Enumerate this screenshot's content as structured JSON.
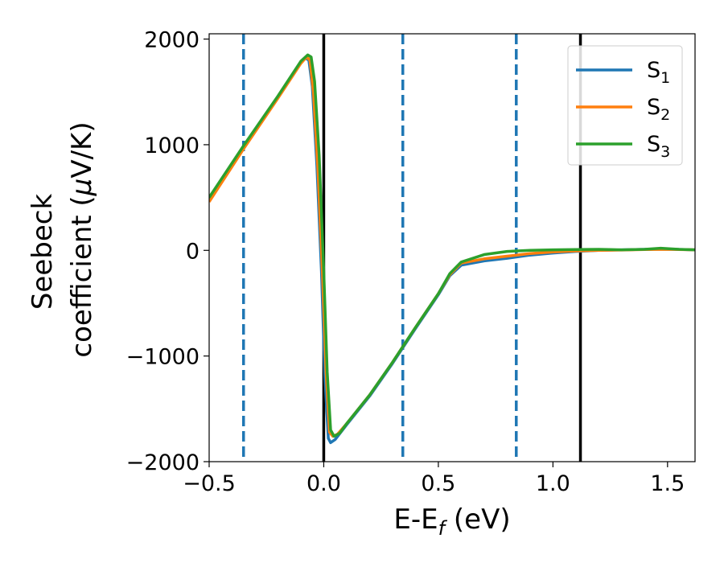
{
  "chart_data": {
    "type": "line",
    "title": "",
    "xlabel": {
      "main": "E-E",
      "sub": "f",
      "tail": " (eV)"
    },
    "ylabel": {
      "line1": "Seebeck",
      "line2": "coefficient  (",
      "mu": "μ",
      "line2_tail": "V/K)"
    },
    "xlim": [
      -0.5,
      1.62
    ],
    "ylim": [
      -2000,
      2050
    ],
    "xticks": [
      -0.5,
      0.0,
      0.5,
      1.0,
      1.5
    ],
    "xtick_labels": [
      "−0.5",
      "0.0",
      "0.5",
      "1.0",
      "1.5"
    ],
    "yticks": [
      -2000,
      -1000,
      0,
      1000,
      2000
    ],
    "ytick_labels": [
      "−2000",
      "−1000",
      "0",
      "1000",
      "2000"
    ],
    "grid": false,
    "legend_position": "top-right",
    "vlines": [
      {
        "x": -0.35,
        "style": "dashed",
        "color": "#1f77b4"
      },
      {
        "x": 0.0,
        "style": "solid",
        "color": "#000000"
      },
      {
        "x": 0.345,
        "style": "dashed",
        "color": "#1f77b4"
      },
      {
        "x": 0.84,
        "style": "dashed",
        "color": "#1f77b4"
      },
      {
        "x": 1.12,
        "style": "solid",
        "color": "#000000"
      }
    ],
    "series": [
      {
        "name": "S",
        "sub": "1",
        "color": "#1f77b4",
        "points": [
          [
            -0.5,
            480
          ],
          [
            -0.35,
            975
          ],
          [
            -0.2,
            1450
          ],
          [
            -0.1,
            1780
          ],
          [
            -0.08,
            1820
          ],
          [
            -0.065,
            1800
          ],
          [
            -0.05,
            1550
          ],
          [
            -0.03,
            800
          ],
          [
            -0.01,
            -200
          ],
          [
            0.005,
            -1200
          ],
          [
            0.02,
            -1780
          ],
          [
            0.03,
            -1820
          ],
          [
            0.05,
            -1790
          ],
          [
            0.1,
            -1650
          ],
          [
            0.2,
            -1380
          ],
          [
            0.3,
            -1070
          ],
          [
            0.4,
            -740
          ],
          [
            0.5,
            -420
          ],
          [
            0.55,
            -240
          ],
          [
            0.6,
            -140
          ],
          [
            0.7,
            -100
          ],
          [
            0.8,
            -75
          ],
          [
            0.9,
            -45
          ],
          [
            1.0,
            -25
          ],
          [
            1.1,
            -10
          ],
          [
            1.2,
            0
          ],
          [
            1.3,
            5
          ],
          [
            1.4,
            10
          ],
          [
            1.5,
            12
          ],
          [
            1.62,
            5
          ]
        ]
      },
      {
        "name": "S",
        "sub": "2",
        "color": "#ff7f0e",
        "points": [
          [
            -0.5,
            460
          ],
          [
            -0.35,
            960
          ],
          [
            -0.2,
            1440
          ],
          [
            -0.1,
            1770
          ],
          [
            -0.075,
            1830
          ],
          [
            -0.06,
            1800
          ],
          [
            -0.045,
            1500
          ],
          [
            -0.025,
            750
          ],
          [
            -0.005,
            -250
          ],
          [
            0.01,
            -1150
          ],
          [
            0.025,
            -1720
          ],
          [
            0.04,
            -1760
          ],
          [
            0.06,
            -1740
          ],
          [
            0.1,
            -1640
          ],
          [
            0.2,
            -1370
          ],
          [
            0.3,
            -1060
          ],
          [
            0.4,
            -730
          ],
          [
            0.5,
            -410
          ],
          [
            0.55,
            -230
          ],
          [
            0.6,
            -120
          ],
          [
            0.7,
            -80
          ],
          [
            0.8,
            -55
          ],
          [
            0.9,
            -30
          ],
          [
            1.0,
            -15
          ],
          [
            1.1,
            -5
          ],
          [
            1.2,
            0
          ],
          [
            1.3,
            3
          ],
          [
            1.4,
            8
          ],
          [
            1.5,
            10
          ],
          [
            1.62,
            5
          ]
        ]
      },
      {
        "name": "S",
        "sub": "3",
        "color": "#2ca02c",
        "points": [
          [
            -0.5,
            500
          ],
          [
            -0.35,
            990
          ],
          [
            -0.2,
            1460
          ],
          [
            -0.1,
            1790
          ],
          [
            -0.07,
            1850
          ],
          [
            -0.055,
            1830
          ],
          [
            -0.04,
            1600
          ],
          [
            -0.02,
            900
          ],
          [
            0.0,
            -200
          ],
          [
            0.015,
            -1150
          ],
          [
            0.03,
            -1700
          ],
          [
            0.045,
            -1760
          ],
          [
            0.07,
            -1730
          ],
          [
            0.1,
            -1640
          ],
          [
            0.2,
            -1370
          ],
          [
            0.3,
            -1060
          ],
          [
            0.4,
            -730
          ],
          [
            0.5,
            -410
          ],
          [
            0.55,
            -220
          ],
          [
            0.6,
            -110
          ],
          [
            0.7,
            -40
          ],
          [
            0.8,
            -10
          ],
          [
            0.9,
            0
          ],
          [
            1.0,
            5
          ],
          [
            1.1,
            8
          ],
          [
            1.2,
            10
          ],
          [
            1.3,
            5
          ],
          [
            1.4,
            10
          ],
          [
            1.47,
            20
          ],
          [
            1.55,
            10
          ],
          [
            1.62,
            5
          ]
        ]
      }
    ]
  }
}
